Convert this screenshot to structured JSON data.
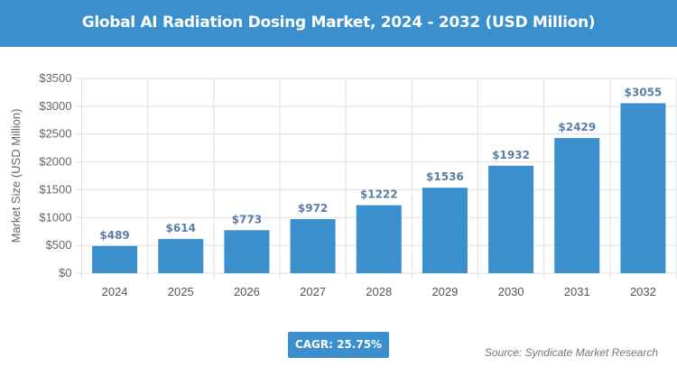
{
  "header": {
    "title": "Global AI Radiation Dosing Market, 2024 - 2032 (USD Million)"
  },
  "chart_data": {
    "type": "bar",
    "title": "Global AI Radiation Dosing Market, 2024 - 2032 (USD Million)",
    "categories": [
      "2024",
      "2025",
      "2026",
      "2027",
      "2028",
      "2029",
      "2030",
      "2031",
      "2032"
    ],
    "values": [
      489,
      614,
      773,
      972,
      1222,
      1536,
      1932,
      2429,
      3055
    ],
    "data_labels": [
      "$489",
      "$614",
      "$773",
      "$972",
      "$1222",
      "$1536",
      "$1932",
      "$2429",
      "$3055"
    ],
    "ylabel": "Market Size (USD Million)",
    "xlabel": "",
    "ylim": [
      0,
      3500
    ],
    "yticks": [
      0,
      500,
      1000,
      1500,
      2000,
      2500,
      3000,
      3500
    ],
    "ytick_labels": [
      "$0",
      "$500",
      "$1000",
      "$1500",
      "$2000",
      "$2500",
      "$3000",
      "$3500"
    ],
    "grid": true,
    "bar_color": "#3a8fcc"
  },
  "footer": {
    "cagr": "CAGR: 25.75%",
    "source": "Source: Syndicate Market Research"
  }
}
